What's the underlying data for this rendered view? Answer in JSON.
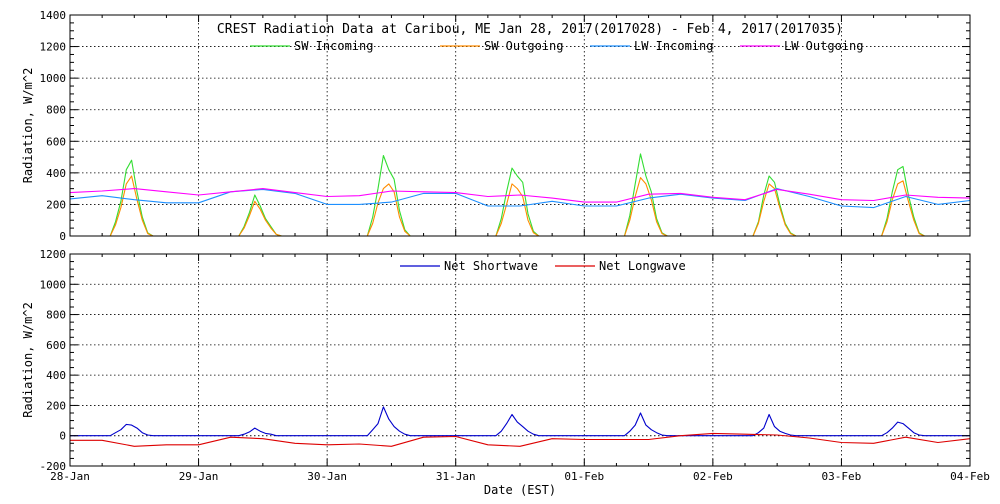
{
  "chart_data": [
    {
      "type": "line",
      "title": "CREST Radiation Data at Caribou, ME   Jan 28, 2017(2017028) - Feb  4, 2017(2017035)",
      "ylabel": "Radiation, W/m^2",
      "ylim": [
        0,
        1400
      ],
      "yticks": [
        0,
        200,
        400,
        600,
        800,
        1000,
        1200,
        1400
      ],
      "xlim": [
        "2017-01-28",
        "2017-02-04"
      ],
      "grid": true,
      "legend_position": "top",
      "series": [
        {
          "name": "SW Incoming",
          "color": "#33dd33",
          "x": [
            "2017-01-28 00:00",
            "2017-01-28 07:30",
            "2017-01-28 08:30",
            "2017-01-28 09:30",
            "2017-01-28 10:30",
            "2017-01-28 11:30",
            "2017-01-28 12:30",
            "2017-01-28 13:30",
            "2017-01-28 14:30",
            "2017-01-28 15:30",
            "2017-01-28 16:30",
            "2017-01-29 07:30",
            "2017-01-29 08:30",
            "2017-01-29 09:30",
            "2017-01-29 10:30",
            "2017-01-29 11:30",
            "2017-01-29 12:30",
            "2017-01-29 13:30",
            "2017-01-29 14:30",
            "2017-01-29 15:30",
            "2017-01-29 16:30",
            "2017-01-30 07:30",
            "2017-01-30 08:30",
            "2017-01-30 09:30",
            "2017-01-30 10:30",
            "2017-01-30 11:30",
            "2017-01-30 12:30",
            "2017-01-30 13:30",
            "2017-01-30 14:30",
            "2017-01-30 15:30",
            "2017-01-30 16:30",
            "2017-01-31 07:30",
            "2017-01-31 08:30",
            "2017-01-31 09:30",
            "2017-01-31 10:30",
            "2017-01-31 11:30",
            "2017-01-31 12:30",
            "2017-01-31 13:30",
            "2017-01-31 14:30",
            "2017-01-31 15:30",
            "2017-01-31 16:30",
            "2017-02-01 07:30",
            "2017-02-01 08:30",
            "2017-02-01 09:30",
            "2017-02-01 10:30",
            "2017-02-01 11:30",
            "2017-02-01 12:30",
            "2017-02-01 13:30",
            "2017-02-01 14:30",
            "2017-02-01 15:30",
            "2017-02-01 16:30",
            "2017-02-02 07:30",
            "2017-02-02 08:30",
            "2017-02-02 09:30",
            "2017-02-02 10:30",
            "2017-02-02 11:30",
            "2017-02-02 12:30",
            "2017-02-02 13:30",
            "2017-02-02 14:30",
            "2017-02-02 15:30",
            "2017-02-02 16:30",
            "2017-02-03 07:30",
            "2017-02-03 08:30",
            "2017-02-03 09:30",
            "2017-02-03 10:30",
            "2017-02-03 11:30",
            "2017-02-03 12:30",
            "2017-02-03 13:30",
            "2017-02-03 14:30",
            "2017-02-03 15:30",
            "2017-02-03 16:30",
            "2017-02-04 00:00"
          ],
          "values": [
            0,
            0,
            90,
            220,
            420,
            480,
            280,
            120,
            20,
            0,
            0,
            0,
            60,
            150,
            260,
            190,
            110,
            60,
            10,
            0,
            0,
            0,
            120,
            300,
            510,
            420,
            360,
            160,
            40,
            0,
            0,
            0,
            110,
            280,
            430,
            380,
            340,
            140,
            30,
            0,
            0,
            0,
            130,
            330,
            520,
            380,
            280,
            110,
            20,
            0,
            0,
            0,
            90,
            260,
            380,
            340,
            200,
            80,
            20,
            0,
            0,
            0,
            110,
            280,
            420,
            440,
            260,
            120,
            20,
            0,
            0,
            0
          ]
        },
        {
          "name": "SW Outgoing",
          "color": "#ff8c00",
          "x": [
            "2017-01-28 00:00",
            "2017-01-28 07:30",
            "2017-01-28 08:30",
            "2017-01-28 09:30",
            "2017-01-28 10:30",
            "2017-01-28 11:30",
            "2017-01-28 12:30",
            "2017-01-28 13:30",
            "2017-01-28 14:30",
            "2017-01-28 15:30",
            "2017-01-28 16:30",
            "2017-01-29 07:30",
            "2017-01-29 08:30",
            "2017-01-29 09:30",
            "2017-01-29 10:30",
            "2017-01-29 11:30",
            "2017-01-29 12:30",
            "2017-01-29 13:30",
            "2017-01-29 14:30",
            "2017-01-29 15:30",
            "2017-01-29 16:30",
            "2017-01-30 07:30",
            "2017-01-30 08:30",
            "2017-01-30 09:30",
            "2017-01-30 10:30",
            "2017-01-30 11:30",
            "2017-01-30 12:30",
            "2017-01-30 13:30",
            "2017-01-30 14:30",
            "2017-01-30 15:30",
            "2017-01-30 16:30",
            "2017-01-31 07:30",
            "2017-01-31 08:30",
            "2017-01-31 09:30",
            "2017-01-31 10:30",
            "2017-01-31 11:30",
            "2017-01-31 12:30",
            "2017-01-31 13:30",
            "2017-01-31 14:30",
            "2017-01-31 15:30",
            "2017-01-31 16:30",
            "2017-02-01 07:30",
            "2017-02-01 08:30",
            "2017-02-01 09:30",
            "2017-02-01 10:30",
            "2017-02-01 11:30",
            "2017-02-01 12:30",
            "2017-02-01 13:30",
            "2017-02-01 14:30",
            "2017-02-01 15:30",
            "2017-02-01 16:30",
            "2017-02-02 07:30",
            "2017-02-02 08:30",
            "2017-02-02 09:30",
            "2017-02-02 10:30",
            "2017-02-02 11:30",
            "2017-02-02 12:30",
            "2017-02-02 13:30",
            "2017-02-02 14:30",
            "2017-02-02 15:30",
            "2017-02-02 16:30",
            "2017-02-03 07:30",
            "2017-02-03 08:30",
            "2017-02-03 09:30",
            "2017-02-03 10:30",
            "2017-02-03 11:30",
            "2017-02-03 12:30",
            "2017-02-03 13:30",
            "2017-02-03 14:30",
            "2017-02-03 15:30",
            "2017-02-03 16:30",
            "2017-02-04 00:00"
          ],
          "values": [
            0,
            0,
            70,
            180,
            330,
            380,
            230,
            100,
            15,
            0,
            0,
            0,
            50,
            130,
            220,
            170,
            100,
            50,
            10,
            0,
            0,
            0,
            80,
            210,
            300,
            330,
            280,
            120,
            30,
            0,
            0,
            0,
            80,
            200,
            330,
            300,
            250,
            100,
            20,
            0,
            0,
            0,
            100,
            250,
            370,
            330,
            230,
            90,
            15,
            0,
            0,
            0,
            80,
            220,
            330,
            300,
            180,
            70,
            15,
            0,
            0,
            0,
            90,
            230,
            330,
            350,
            220,
            100,
            15,
            0,
            0,
            0
          ]
        },
        {
          "name": "LW Incoming",
          "color": "#1e90ff",
          "x": [
            "2017-01-28 00:00",
            "2017-01-28 06:00",
            "2017-01-28 12:00",
            "2017-01-28 18:00",
            "2017-01-29 00:00",
            "2017-01-29 06:00",
            "2017-01-29 12:00",
            "2017-01-29 18:00",
            "2017-01-30 00:00",
            "2017-01-30 06:00",
            "2017-01-30 12:00",
            "2017-01-30 18:00",
            "2017-01-31 00:00",
            "2017-01-31 06:00",
            "2017-01-31 12:00",
            "2017-01-31 18:00",
            "2017-02-01 00:00",
            "2017-02-01 06:00",
            "2017-02-01 12:00",
            "2017-02-01 18:00",
            "2017-02-02 00:00",
            "2017-02-02 06:00",
            "2017-02-02 12:00",
            "2017-02-02 18:00",
            "2017-02-03 00:00",
            "2017-02-03 06:00",
            "2017-02-03 12:00",
            "2017-02-03 18:00",
            "2017-02-04 00:00"
          ],
          "values": [
            235,
            255,
            230,
            210,
            210,
            280,
            295,
            270,
            200,
            200,
            215,
            270,
            270,
            190,
            190,
            220,
            190,
            190,
            240,
            265,
            240,
            225,
            300,
            250,
            190,
            180,
            250,
            200,
            225
          ]
        },
        {
          "name": "LW Outgoing",
          "color": "#ff00ff",
          "x": [
            "2017-01-28 00:00",
            "2017-01-28 06:00",
            "2017-01-28 12:00",
            "2017-01-28 18:00",
            "2017-01-29 00:00",
            "2017-01-29 06:00",
            "2017-01-29 12:00",
            "2017-01-29 18:00",
            "2017-01-30 00:00",
            "2017-01-30 06:00",
            "2017-01-30 12:00",
            "2017-01-30 18:00",
            "2017-01-31 00:00",
            "2017-01-31 06:00",
            "2017-01-31 12:00",
            "2017-01-31 18:00",
            "2017-02-01 00:00",
            "2017-02-01 06:00",
            "2017-02-01 12:00",
            "2017-02-01 18:00",
            "2017-02-02 00:00",
            "2017-02-02 06:00",
            "2017-02-02 12:00",
            "2017-02-02 18:00",
            "2017-02-03 00:00",
            "2017-02-03 06:00",
            "2017-02-03 12:00",
            "2017-02-03 18:00",
            "2017-02-04 00:00"
          ],
          "values": [
            275,
            285,
            300,
            280,
            260,
            280,
            300,
            275,
            250,
            255,
            285,
            280,
            275,
            250,
            260,
            240,
            215,
            215,
            265,
            270,
            245,
            230,
            295,
            265,
            230,
            225,
            260,
            245,
            240
          ]
        }
      ]
    },
    {
      "type": "line",
      "ylabel": "Radiation, W/m^2",
      "xlabel": "Date (EST)",
      "ylim": [
        -200,
        1200
      ],
      "yticks": [
        -200,
        0,
        200,
        400,
        600,
        800,
        1000,
        1200
      ],
      "xlim": [
        "2017-01-28",
        "2017-02-04"
      ],
      "xtick_labels": [
        "28-Jan",
        "29-Jan",
        "30-Jan",
        "31-Jan",
        "01-Feb",
        "02-Feb",
        "03-Feb",
        "04-Feb"
      ],
      "grid": true,
      "legend_position": "top",
      "series": [
        {
          "name": "Net Shortwave",
          "color": "#0000cc",
          "x": [
            "2017-01-28 00:00",
            "2017-01-28 07:30",
            "2017-01-28 08:30",
            "2017-01-28 09:30",
            "2017-01-28 10:30",
            "2017-01-28 11:30",
            "2017-01-28 12:30",
            "2017-01-28 13:30",
            "2017-01-28 14:30",
            "2017-01-28 15:30",
            "2017-01-28 16:30",
            "2017-01-29 07:30",
            "2017-01-29 08:30",
            "2017-01-29 09:30",
            "2017-01-29 10:30",
            "2017-01-29 11:30",
            "2017-01-29 12:30",
            "2017-01-29 13:30",
            "2017-01-29 14:30",
            "2017-01-29 15:30",
            "2017-01-29 16:30",
            "2017-01-30 07:30",
            "2017-01-30 08:30",
            "2017-01-30 09:30",
            "2017-01-30 10:30",
            "2017-01-30 11:30",
            "2017-01-30 12:30",
            "2017-01-30 13:30",
            "2017-01-30 14:30",
            "2017-01-30 15:30",
            "2017-01-30 16:30",
            "2017-01-31 07:30",
            "2017-01-31 08:30",
            "2017-01-31 09:30",
            "2017-01-31 10:30",
            "2017-01-31 11:30",
            "2017-01-31 12:30",
            "2017-01-31 13:30",
            "2017-01-31 14:30",
            "2017-01-31 15:30",
            "2017-01-31 16:30",
            "2017-02-01 07:30",
            "2017-02-01 08:30",
            "2017-02-01 09:30",
            "2017-02-01 10:30",
            "2017-02-01 11:30",
            "2017-02-01 12:30",
            "2017-02-01 13:30",
            "2017-02-01 14:30",
            "2017-02-01 15:30",
            "2017-02-01 16:30",
            "2017-02-02 07:30",
            "2017-02-02 08:30",
            "2017-02-02 09:30",
            "2017-02-02 10:30",
            "2017-02-02 11:30",
            "2017-02-02 12:30",
            "2017-02-02 13:30",
            "2017-02-02 14:30",
            "2017-02-02 15:30",
            "2017-02-02 16:30",
            "2017-02-03 07:30",
            "2017-02-03 08:30",
            "2017-02-03 09:30",
            "2017-02-03 10:30",
            "2017-02-03 11:30",
            "2017-02-03 12:30",
            "2017-02-03 13:30",
            "2017-02-03 14:30",
            "2017-02-03 15:30",
            "2017-02-03 16:30",
            "2017-02-04 00:00"
          ],
          "values": [
            0,
            0,
            20,
            40,
            75,
            70,
            50,
            20,
            5,
            0,
            0,
            0,
            10,
            25,
            50,
            30,
            15,
            10,
            0,
            0,
            0,
            0,
            40,
            80,
            190,
            110,
            60,
            30,
            10,
            0,
            0,
            0,
            30,
            80,
            140,
            90,
            60,
            30,
            10,
            0,
            0,
            0,
            30,
            70,
            150,
            70,
            40,
            20,
            5,
            0,
            0,
            0,
            20,
            50,
            140,
            60,
            30,
            15,
            5,
            0,
            0,
            0,
            20,
            50,
            90,
            80,
            50,
            20,
            5,
            0,
            0,
            0
          ]
        },
        {
          "name": "Net Longwave",
          "color": "#dd0000",
          "x": [
            "2017-01-28 00:00",
            "2017-01-28 06:00",
            "2017-01-28 12:00",
            "2017-01-28 18:00",
            "2017-01-29 00:00",
            "2017-01-29 06:00",
            "2017-01-29 12:00",
            "2017-01-29 18:00",
            "2017-01-30 00:00",
            "2017-01-30 06:00",
            "2017-01-30 12:00",
            "2017-01-30 18:00",
            "2017-01-31 00:00",
            "2017-01-31 06:00",
            "2017-01-31 12:00",
            "2017-01-31 18:00",
            "2017-02-01 00:00",
            "2017-02-01 06:00",
            "2017-02-01 12:00",
            "2017-02-01 18:00",
            "2017-02-02 00:00",
            "2017-02-02 06:00",
            "2017-02-02 12:00",
            "2017-02-02 18:00",
            "2017-02-03 00:00",
            "2017-02-03 06:00",
            "2017-02-03 12:00",
            "2017-02-03 18:00",
            "2017-02-04 00:00"
          ],
          "values": [
            -30,
            -30,
            -70,
            -60,
            -60,
            -10,
            -20,
            -50,
            -60,
            -55,
            -70,
            -10,
            -5,
            -60,
            -70,
            -20,
            -25,
            -25,
            -25,
            0,
            15,
            10,
            5,
            -15,
            -45,
            -50,
            -10,
            -45,
            -20
          ]
        }
      ]
    }
  ]
}
